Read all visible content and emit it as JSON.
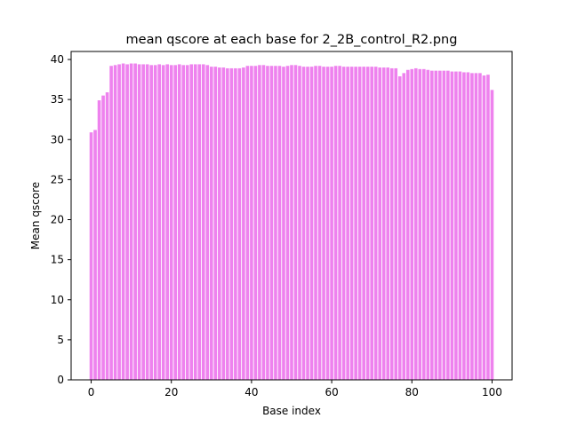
{
  "chart_data": {
    "type": "bar",
    "title": "mean qscore at each base for 2_2B_control_R2.png",
    "xlabel": "Base index",
    "ylabel": "Mean qscore",
    "xlim": [
      -5,
      105
    ],
    "ylim": [
      0,
      41
    ],
    "xticks": [
      0,
      20,
      40,
      60,
      80,
      100
    ],
    "yticks": [
      0,
      5,
      10,
      15,
      20,
      25,
      30,
      35,
      40
    ],
    "bar_color": "#ee82ee",
    "grid": false,
    "legend": "none",
    "x": [
      0,
      1,
      2,
      3,
      4,
      5,
      6,
      7,
      8,
      9,
      10,
      11,
      12,
      13,
      14,
      15,
      16,
      17,
      18,
      19,
      20,
      21,
      22,
      23,
      24,
      25,
      26,
      27,
      28,
      29,
      30,
      31,
      32,
      33,
      34,
      35,
      36,
      37,
      38,
      39,
      40,
      41,
      42,
      43,
      44,
      45,
      46,
      47,
      48,
      49,
      50,
      51,
      52,
      53,
      54,
      55,
      56,
      57,
      58,
      59,
      60,
      61,
      62,
      63,
      64,
      65,
      66,
      67,
      68,
      69,
      70,
      71,
      72,
      73,
      74,
      75,
      76,
      77,
      78,
      79,
      80,
      81,
      82,
      83,
      84,
      85,
      86,
      87,
      88,
      89,
      90,
      91,
      92,
      93,
      94,
      95,
      96,
      97,
      98,
      99,
      100
    ],
    "values": [
      30.9,
      31.2,
      34.9,
      35.5,
      35.9,
      39.2,
      39.3,
      39.4,
      39.5,
      39.4,
      39.5,
      39.5,
      39.4,
      39.4,
      39.4,
      39.3,
      39.3,
      39.4,
      39.3,
      39.4,
      39.3,
      39.3,
      39.4,
      39.3,
      39.3,
      39.4,
      39.4,
      39.4,
      39.4,
      39.3,
      39.1,
      39.1,
      39.0,
      39.0,
      38.9,
      38.9,
      38.9,
      38.9,
      39.0,
      39.2,
      39.2,
      39.2,
      39.3,
      39.3,
      39.2,
      39.2,
      39.2,
      39.2,
      39.1,
      39.2,
      39.3,
      39.3,
      39.2,
      39.1,
      39.1,
      39.1,
      39.2,
      39.2,
      39.1,
      39.1,
      39.1,
      39.2,
      39.2,
      39.1,
      39.1,
      39.1,
      39.1,
      39.1,
      39.1,
      39.1,
      39.1,
      39.1,
      39.0,
      39.0,
      39.0,
      38.9,
      38.9,
      37.9,
      38.3,
      38.7,
      38.8,
      38.9,
      38.8,
      38.8,
      38.7,
      38.6,
      38.6,
      38.6,
      38.6,
      38.6,
      38.5,
      38.5,
      38.5,
      38.4,
      38.4,
      38.3,
      38.3,
      38.3,
      38.0,
      38.1,
      36.2
    ]
  }
}
